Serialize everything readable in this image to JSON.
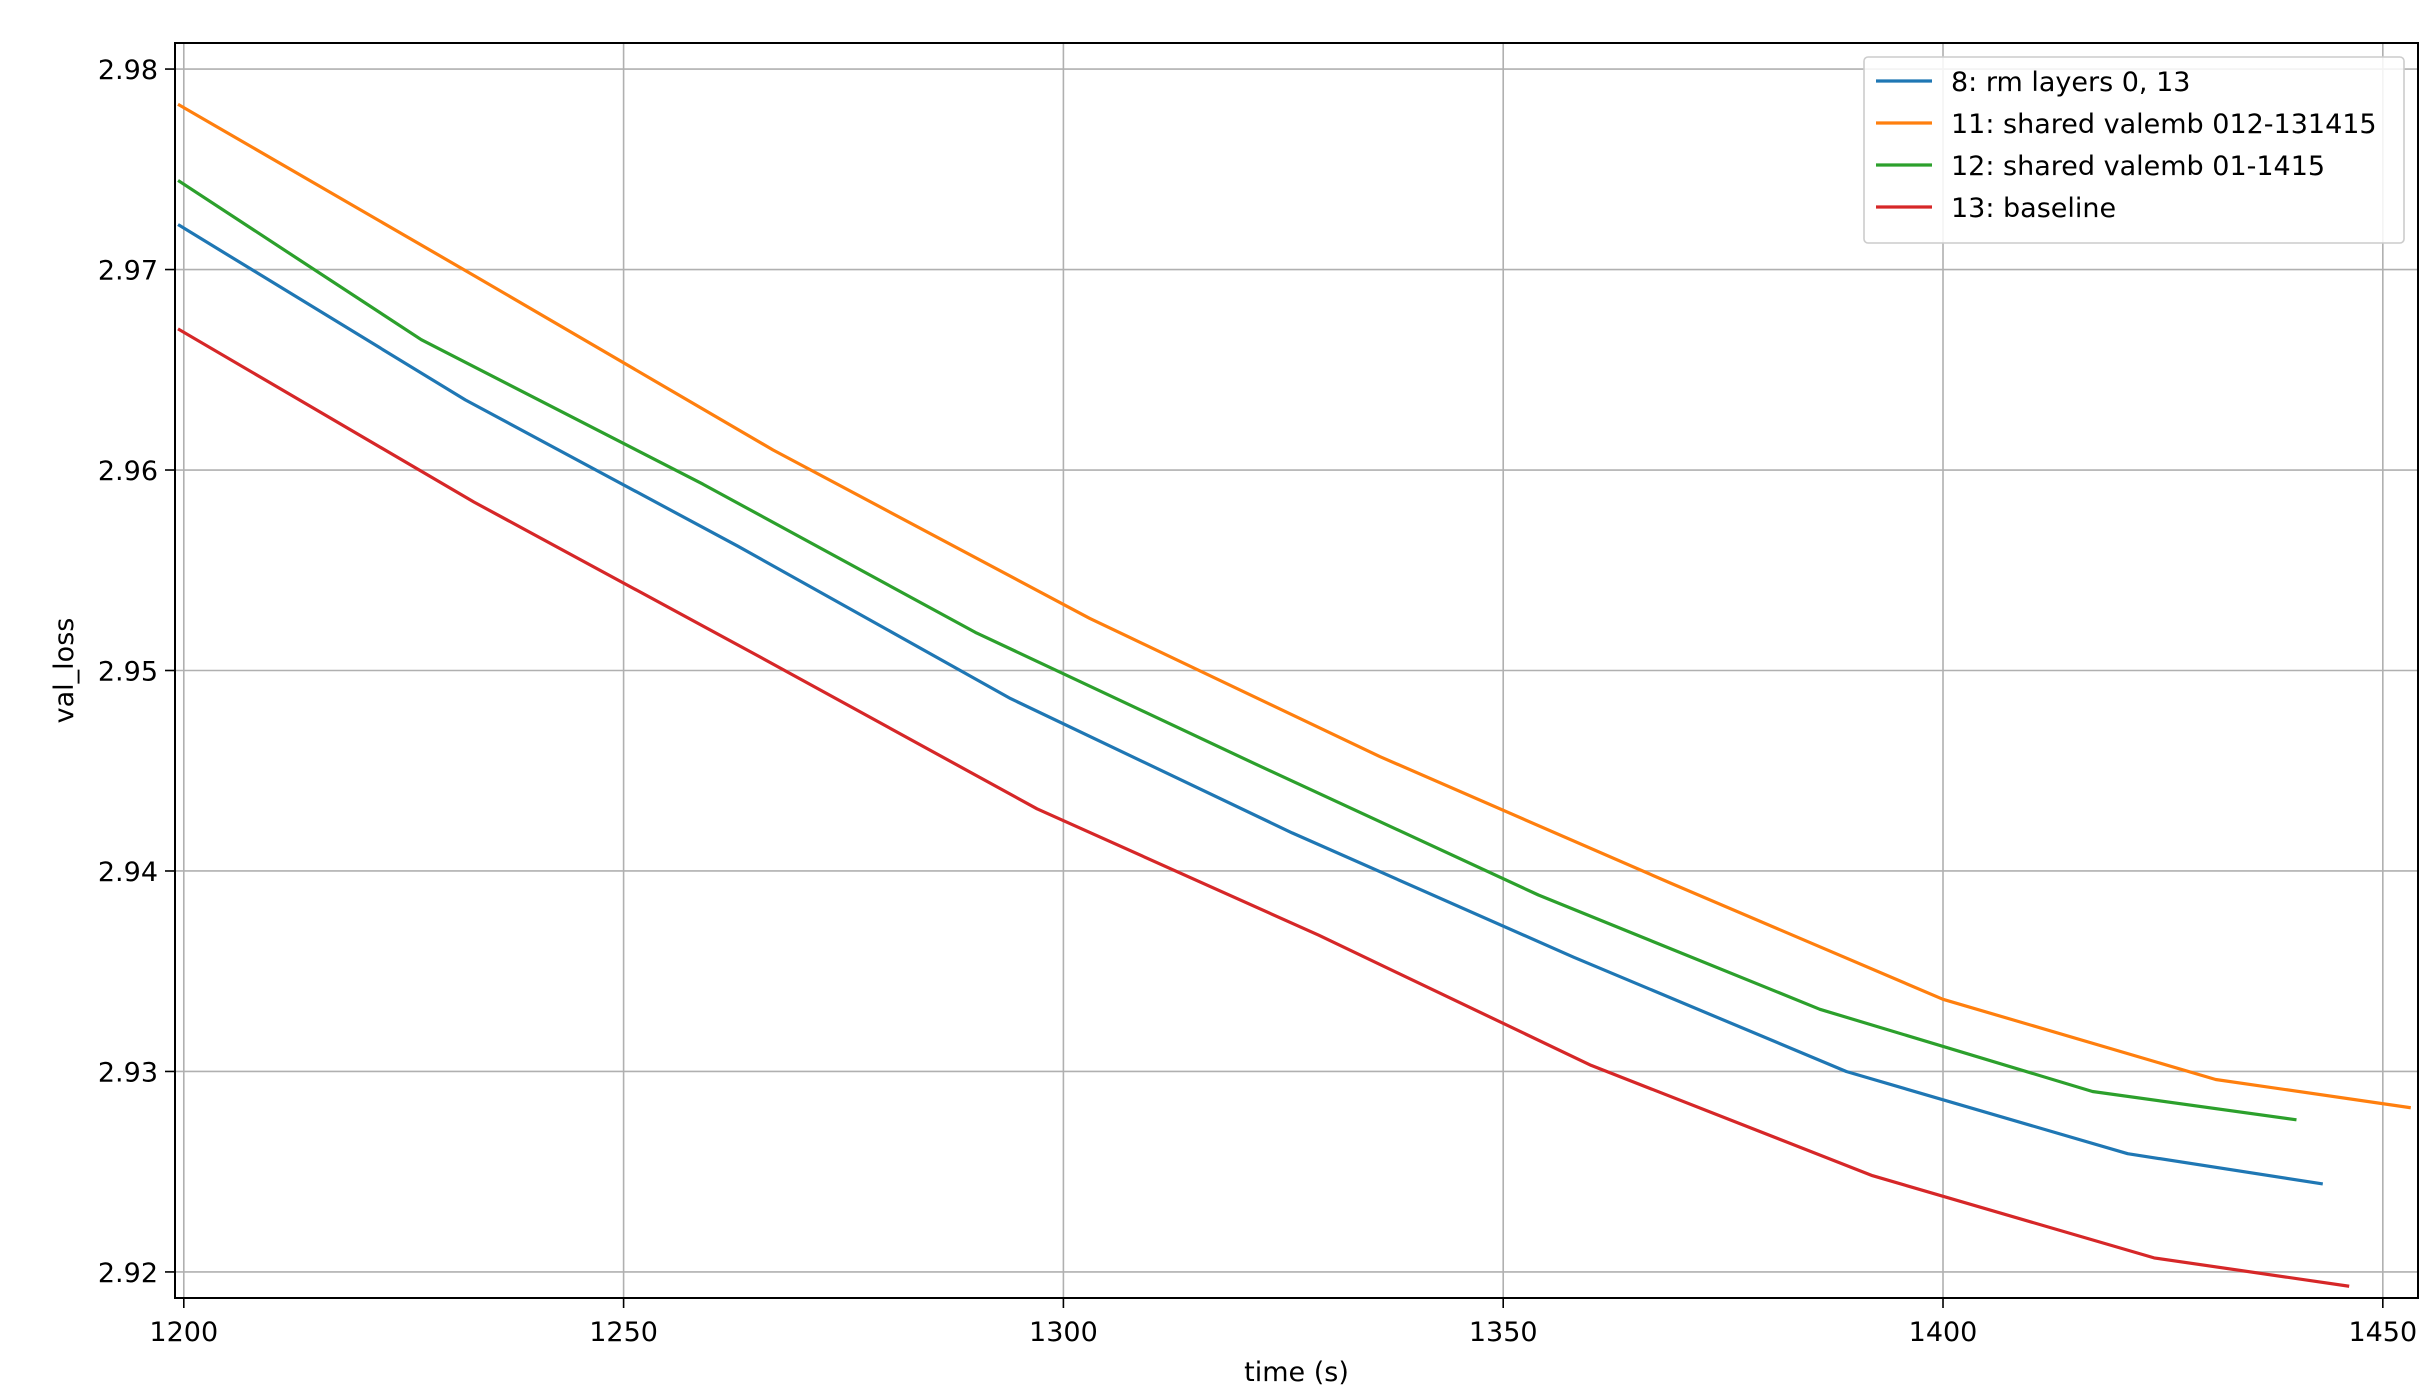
{
  "chart_data": {
    "type": "line",
    "title": "",
    "xlabel": "time (s)",
    "ylabel": "val_loss",
    "xlim": [
      1199,
      1454
    ],
    "ylim": [
      2.9187,
      2.9813
    ],
    "xticks": [
      1200,
      1250,
      1300,
      1350,
      1400,
      1450
    ],
    "xtick_labels": [
      "1200",
      "1250",
      "1300",
      "1350",
      "1400",
      "1450"
    ],
    "yticks": [
      2.92,
      2.93,
      2.94,
      2.95,
      2.96,
      2.97,
      2.98
    ],
    "ytick_labels": [
      "2.92",
      "2.93",
      "2.94",
      "2.95",
      "2.96",
      "2.97",
      "2.98"
    ],
    "grid": true,
    "legend_position": "top-right",
    "series": [
      {
        "name": "8: rm layers 0, 13",
        "color": "#1f77b4",
        "x": [
          1199.5,
          1232,
          1263,
          1294,
          1326,
          1358,
          1389,
          1421,
          1443
        ],
        "y": [
          2.9722,
          2.9635,
          2.9562,
          2.9486,
          2.9419,
          2.9357,
          2.93,
          2.9259,
          2.9244
        ]
      },
      {
        "name": "11: shared valemb 012-131415",
        "color": "#ff7f0e",
        "x": [
          1199.5,
          1233,
          1267,
          1303,
          1336,
          1369,
          1400,
          1431,
          1453
        ],
        "y": [
          2.9782,
          2.9697,
          2.961,
          2.9526,
          2.9457,
          2.9394,
          2.9336,
          2.9296,
          2.9282
        ]
      },
      {
        "name": "12: shared valemb 01-1415",
        "color": "#2ca02c",
        "x": [
          1199.5,
          1227,
          1259,
          1290,
          1322,
          1354,
          1386,
          1417,
          1440
        ],
        "y": [
          2.9744,
          2.9665,
          2.9593,
          2.9519,
          2.9453,
          2.9388,
          2.9331,
          2.929,
          2.9276
        ]
      },
      {
        "name": "13: baseline",
        "color": "#d62728",
        "x": [
          1199.5,
          1233,
          1265,
          1297,
          1329,
          1360,
          1392,
          1424,
          1446
        ],
        "y": [
          2.967,
          2.9584,
          2.9508,
          2.9431,
          2.9368,
          2.9303,
          2.9248,
          2.9207,
          2.9193
        ]
      }
    ]
  }
}
